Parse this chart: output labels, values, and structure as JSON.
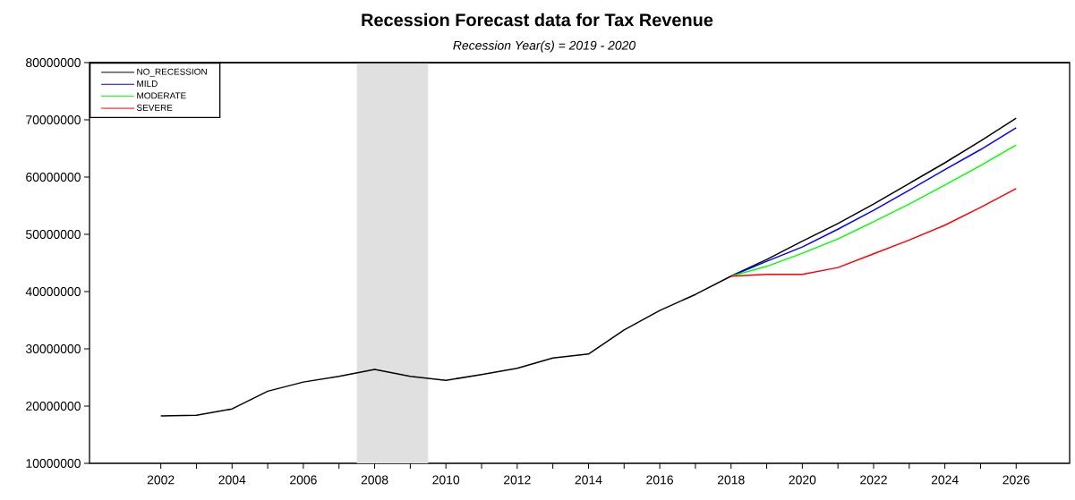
{
  "chart_data": {
    "type": "line",
    "title": "Recession Forecast data for Tax Revenue",
    "subtitle": "Recession Year(s) = 2019 - 2020",
    "series": [
      {
        "name": "NO_RECESSION",
        "color": "#000000",
        "x": [
          2002,
          2003,
          2004,
          2005,
          2006,
          2007,
          2008,
          2009,
          2010,
          2011,
          2012,
          2013,
          2014,
          2015,
          2016,
          2017,
          2018,
          2019,
          2020,
          2021,
          2022,
          2023,
          2024,
          2025,
          2026
        ],
        "values": [
          18300000,
          18400000,
          19500000,
          22600000,
          24200000,
          25200000,
          26400000,
          25200000,
          24500000,
          25500000,
          26600000,
          28400000,
          29100000,
          33300000,
          36700000,
          39500000,
          42700000,
          45600000,
          48800000,
          51900000,
          55300000,
          58900000,
          62500000,
          66300000,
          70300000
        ]
      },
      {
        "name": "MILD",
        "color": "#0000ff",
        "x": [
          2018,
          2019,
          2020,
          2021,
          2022,
          2023,
          2024,
          2025,
          2026
        ],
        "values": [
          42700000,
          45300000,
          47800000,
          50900000,
          54200000,
          57700000,
          61300000,
          64800000,
          68600000
        ]
      },
      {
        "name": "MODERATE",
        "color": "#00ff00",
        "x": [
          2018,
          2019,
          2020,
          2021,
          2022,
          2023,
          2024,
          2025,
          2026
        ],
        "values": [
          42700000,
          44400000,
          46700000,
          49200000,
          52200000,
          55300000,
          58600000,
          62000000,
          65600000
        ]
      },
      {
        "name": "SEVERE",
        "color": "#ff0000",
        "x": [
          2018,
          2019,
          2020,
          2021,
          2022,
          2023,
          2024,
          2025,
          2026
        ],
        "values": [
          42700000,
          43000000,
          43000000,
          44200000,
          46600000,
          49000000,
          51600000,
          54700000,
          58000000
        ]
      }
    ],
    "bands": [
      {
        "axis": "x",
        "from": 2007.5,
        "to": 2009.5,
        "color": "#e0e0e0"
      }
    ],
    "xlim": [
      2000,
      2027.5
    ],
    "xticks": [
      2002,
      {
        "value": 2003,
        "label": null
      },
      2004,
      {
        "value": 2005,
        "label": null
      },
      2006,
      {
        "value": 2007,
        "label": null
      },
      2008,
      {
        "value": 2009,
        "label": null
      },
      2010,
      {
        "value": 2011,
        "label": null
      },
      2012,
      {
        "value": 2013,
        "label": null
      },
      2014,
      {
        "value": 2015,
        "label": null
      },
      2016,
      {
        "value": 2017,
        "label": null
      },
      2018,
      {
        "value": 2019,
        "label": null
      },
      2020,
      {
        "value": 2021,
        "label": null
      },
      2022,
      {
        "value": 2023,
        "label": null
      },
      2024,
      {
        "value": 2025,
        "label": null
      },
      2026
    ],
    "ylim": [
      10000000,
      80000000
    ],
    "yticks": [
      10000000,
      20000000,
      30000000,
      40000000,
      50000000,
      60000000,
      70000000,
      80000000
    ],
    "legend": "top left",
    "line_style": "solid",
    "grid": false
  }
}
